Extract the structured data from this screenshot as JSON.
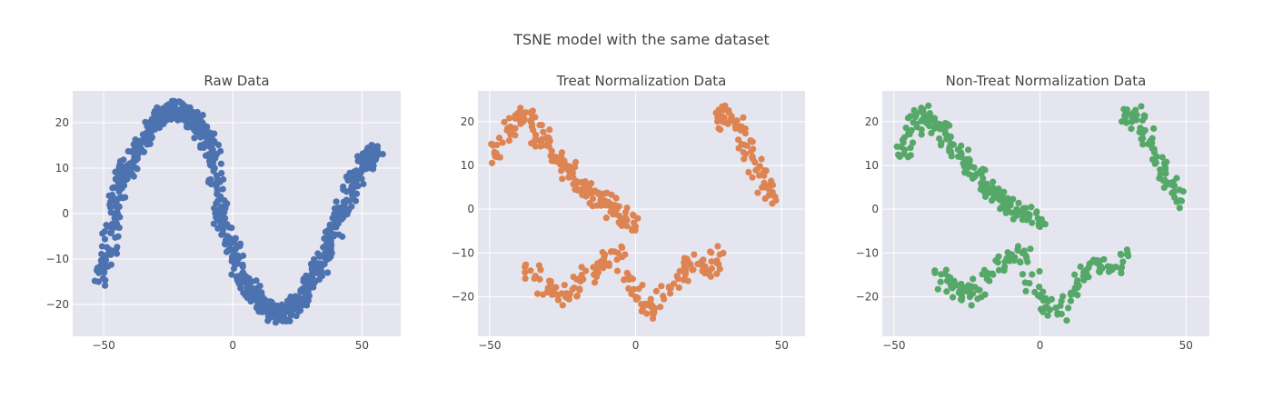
{
  "title": "TSNE model with the same dataset",
  "chart_data": [
    {
      "type": "scatter",
      "title": "Raw Data",
      "color": "#4c72b0",
      "xlim": [
        -62,
        65
      ],
      "ylim": [
        -27,
        27
      ],
      "xticks": [
        -50,
        0,
        50
      ],
      "yticks": [
        -20,
        -10,
        0,
        10,
        20
      ],
      "grid": true,
      "shape": "s-curve",
      "clusters": [
        {
          "x": [
            -52,
            -50,
            -48,
            -47,
            -46,
            -45,
            -44,
            -43,
            -42,
            -41,
            -40,
            -38,
            -36,
            -34,
            -32,
            -30,
            -28,
            -26,
            -24,
            -22,
            -20,
            -18,
            -16,
            -14,
            -12,
            -10,
            -8,
            -7,
            -6,
            -5
          ],
          "y": [
            -15,
            -12,
            -8,
            -4,
            0,
            3,
            6,
            8,
            9,
            10,
            11,
            13,
            15,
            17,
            19,
            21,
            22,
            22,
            23,
            23,
            23,
            22,
            21,
            20,
            18,
            16,
            14,
            10,
            5,
            1
          ]
        }
      ],
      "x": [
        -52,
        -50,
        -48,
        -47,
        -46,
        -45,
        -44,
        -43,
        -42,
        -41,
        -40,
        -38,
        -36,
        -34,
        -32,
        -30,
        -28,
        -26,
        -24,
        -22,
        -20,
        -18,
        -16,
        -14,
        -12,
        -10,
        -8,
        -7,
        -6,
        -5,
        -4,
        -2,
        0,
        2,
        4,
        6,
        8,
        10,
        12,
        14,
        16,
        18,
        20,
        22,
        24,
        26,
        28,
        30,
        32,
        34,
        36,
        38,
        40,
        42,
        44,
        46,
        48,
        50,
        52,
        54,
        56
      ],
      "y": [
        -15,
        -12,
        -8,
        -4,
        0,
        3,
        6,
        8,
        9,
        10,
        11,
        13,
        15,
        17,
        19,
        21,
        22,
        22,
        23,
        23,
        23,
        22,
        21,
        20,
        18,
        16,
        14,
        10,
        5,
        1,
        -2,
        -5,
        -8,
        -11,
        -14,
        -16,
        -18,
        -19,
        -20,
        -21,
        -22,
        -22,
        -22,
        -21,
        -20,
        -19,
        -17,
        -15,
        -13,
        -11,
        -9,
        -6,
        -3,
        0,
        3,
        6,
        8,
        10,
        12,
        13,
        14
      ]
    },
    {
      "type": "scatter",
      "title": "Treat Normalization Data",
      "color": "#dd8452",
      "xlim": [
        -54,
        58
      ],
      "ylim": [
        -29,
        27
      ],
      "xticks": [
        -50,
        0,
        50
      ],
      "yticks": [
        -20,
        -10,
        0,
        10,
        20
      ],
      "grid": true,
      "shape": "clusters",
      "x": [
        -48,
        -44,
        -40,
        -36,
        -32,
        -28,
        -24,
        -20,
        -16,
        -12,
        -8,
        -4,
        0,
        28,
        32,
        36,
        40,
        44,
        48,
        -36,
        -30,
        -24,
        -18,
        -12,
        -6,
        0,
        6,
        12,
        18,
        24,
        30
      ],
      "y": [
        12,
        18,
        22,
        20,
        16,
        12,
        10,
        6,
        4,
        2,
        0,
        -2,
        -4,
        20,
        22,
        18,
        12,
        6,
        2,
        -14,
        -18,
        -20,
        -16,
        -12,
        -10,
        -20,
        -24,
        -18,
        -12,
        -14,
        -10
      ]
    },
    {
      "type": "scatter",
      "title": "Non-Treat Normalization Data",
      "color": "#55a868",
      "xlim": [
        -54,
        58
      ],
      "ylim": [
        -29,
        27
      ],
      "xticks": [
        -50,
        0,
        50
      ],
      "yticks": [
        -20,
        -10,
        0,
        10,
        20
      ],
      "grid": true,
      "shape": "clusters",
      "x": [
        -48,
        -44,
        -40,
        -36,
        -32,
        -28,
        -24,
        -20,
        -16,
        -12,
        -8,
        -4,
        0,
        28,
        32,
        36,
        40,
        44,
        48,
        -36,
        -30,
        -24,
        -18,
        -12,
        -6,
        0,
        6,
        12,
        18,
        24,
        30
      ],
      "y": [
        12,
        18,
        22,
        20,
        16,
        12,
        10,
        6,
        4,
        2,
        0,
        -2,
        -4,
        20,
        22,
        18,
        12,
        6,
        2,
        -14,
        -18,
        -20,
        -16,
        -12,
        -10,
        -20,
        -24,
        -18,
        -12,
        -14,
        -10
      ]
    }
  ]
}
